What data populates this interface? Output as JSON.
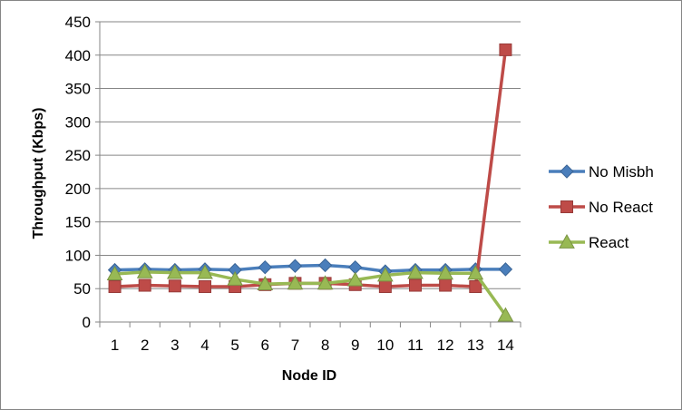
{
  "chart_data": {
    "type": "line",
    "title": "",
    "xlabel": "Node ID",
    "ylabel": "Throughput (Kbps)",
    "ylim": [
      0,
      450
    ],
    "yticks": [
      0,
      50,
      100,
      150,
      200,
      250,
      300,
      350,
      400,
      450
    ],
    "categories": [
      "1",
      "2",
      "3",
      "4",
      "5",
      "6",
      "7",
      "8",
      "9",
      "10",
      "11",
      "12",
      "13",
      "14"
    ],
    "grid": "horizontal",
    "legend_position": "right",
    "series": [
      {
        "name": "No Misbh",
        "color": "#4A7EBB",
        "marker": "diamond",
        "values": [
          78,
          79,
          78,
          79,
          78,
          82,
          84,
          85,
          82,
          76,
          78,
          78,
          79,
          79
        ]
      },
      {
        "name": "No React",
        "color": "#BE4B48",
        "marker": "square",
        "values": [
          53,
          55,
          54,
          53,
          53,
          56,
          58,
          58,
          56,
          53,
          55,
          55,
          53,
          408
        ]
      },
      {
        "name": "React",
        "color": "#98B954",
        "marker": "triangle",
        "values": [
          72,
          75,
          74,
          74,
          64,
          57,
          58,
          58,
          63,
          70,
          74,
          73,
          73,
          10
        ]
      }
    ]
  }
}
